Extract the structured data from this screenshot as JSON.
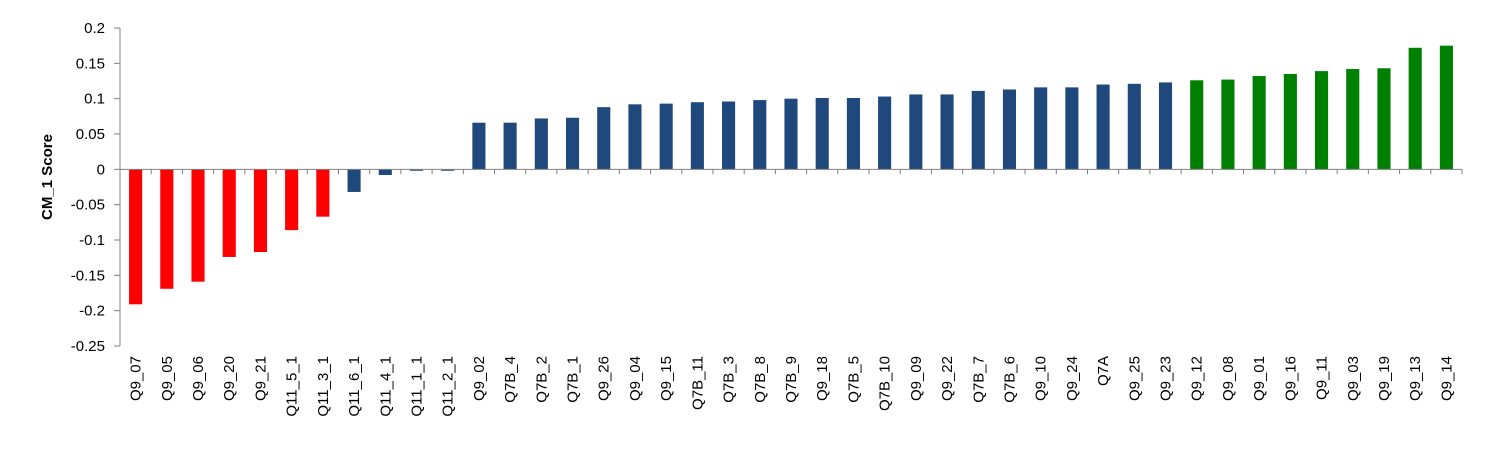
{
  "chart_data": {
    "type": "bar",
    "title": "",
    "xlabel": "",
    "ylabel": "CM_1 Score",
    "ylim": [
      -0.25,
      0.2
    ],
    "yticks": [
      "0.2",
      "0.15",
      "0.1",
      "0.05",
      "0",
      "-0.05",
      "-0.1",
      "-0.15",
      "-0.2",
      "-0.25"
    ],
    "grid": false,
    "legend": "none",
    "colors": {
      "negative_low": "#ff0000",
      "middle": "#1f497d",
      "positive_high": "#008000"
    },
    "categories": [
      "Q9_07",
      "Q9_05",
      "Q9_06",
      "Q9_20",
      "Q9_21",
      "Q11_5_1",
      "Q11_3_1",
      "Q11_6_1",
      "Q11_4_1",
      "Q11_1_1",
      "Q11_2_1",
      "Q9_02",
      "Q7B_4",
      "Q7B_2",
      "Q7B_1",
      "Q9_26",
      "Q9_04",
      "Q9_15",
      "Q7B_11",
      "Q7B_3",
      "Q7B_8",
      "Q7B_9",
      "Q9_18",
      "Q7B_5",
      "Q7B_10",
      "Q9_09",
      "Q9_22",
      "Q7B_7",
      "Q7B_6",
      "Q9_10",
      "Q9_24",
      "Q7A",
      "Q9_25",
      "Q9_23",
      "Q9_12",
      "Q9_08",
      "Q9_01",
      "Q9_16",
      "Q9_11",
      "Q9_03",
      "Q9_19",
      "Q9_13",
      "Q9_14"
    ],
    "values": [
      -0.191,
      -0.169,
      -0.159,
      -0.124,
      -0.117,
      -0.086,
      -0.067,
      -0.032,
      -0.008,
      -0.002,
      -0.002,
      0.066,
      0.066,
      0.072,
      0.073,
      0.088,
      0.092,
      0.093,
      0.095,
      0.096,
      0.098,
      0.1,
      0.101,
      0.101,
      0.103,
      0.106,
      0.106,
      0.111,
      0.113,
      0.116,
      0.116,
      0.12,
      0.121,
      0.123,
      0.126,
      0.127,
      0.132,
      0.135,
      0.139,
      0.142,
      0.143,
      0.172,
      0.175
    ],
    "bar_colors": [
      "#ff0000",
      "#ff0000",
      "#ff0000",
      "#ff0000",
      "#ff0000",
      "#ff0000",
      "#ff0000",
      "#1f497d",
      "#1f497d",
      "#1f497d",
      "#1f497d",
      "#1f497d",
      "#1f497d",
      "#1f497d",
      "#1f497d",
      "#1f497d",
      "#1f497d",
      "#1f497d",
      "#1f497d",
      "#1f497d",
      "#1f497d",
      "#1f497d",
      "#1f497d",
      "#1f497d",
      "#1f497d",
      "#1f497d",
      "#1f497d",
      "#1f497d",
      "#1f497d",
      "#1f497d",
      "#1f497d",
      "#1f497d",
      "#1f497d",
      "#1f497d",
      "#008000",
      "#008000",
      "#008000",
      "#008000",
      "#008000",
      "#008000",
      "#008000",
      "#008000",
      "#008000"
    ]
  }
}
